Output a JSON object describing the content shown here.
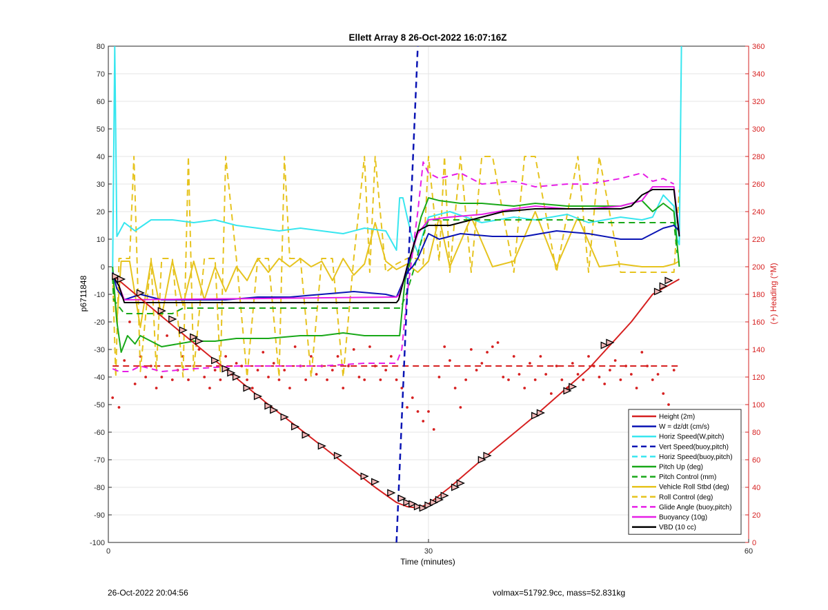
{
  "footer": {
    "left": "26-Oct-2022 20:04:56",
    "right": "volmax=51792.9cc, mass=52.831kg"
  },
  "chart_data": {
    "type": "line",
    "title": "Ellett Array 8 26-Oct-2022 16:07:16Z",
    "xlabel": "Time (minutes)",
    "ylabel": "p6711848",
    "y2label": "(+) Heading (°M)",
    "xlim": [
      0,
      60
    ],
    "ylim": [
      -100,
      80
    ],
    "y2lim": [
      0,
      360
    ],
    "xticks": [
      0,
      30,
      60
    ],
    "yticks": [
      -100,
      -90,
      -80,
      -70,
      -60,
      -50,
      -40,
      -30,
      -20,
      -10,
      0,
      10,
      20,
      30,
      40,
      50,
      60,
      70,
      80
    ],
    "y2ticks": [
      0,
      20,
      40,
      60,
      80,
      100,
      120,
      140,
      160,
      180,
      200,
      220,
      240,
      260,
      280,
      300,
      320,
      340,
      360
    ],
    "grid": true,
    "legend_position": "bottom-right",
    "colors": {
      "height": "#d62020",
      "w": "#0a14b4",
      "horiz": "#37e6ef",
      "vert_buoy": "#0a14b4",
      "horiz_buoy": "#37e6ef",
      "pitch": "#18a818",
      "pitch_ctrl": "#18a818",
      "roll": "#e6c31e",
      "roll_ctrl": "#e6c31e",
      "glide": "#e61ee6",
      "buoy": "#e61ee6",
      "vbd": "#000000",
      "heading": "#d62020",
      "right_axis": "#d62020"
    },
    "series": [
      {
        "name": "Height (2m)",
        "key": "height",
        "dash": false,
        "x": [
          0.4,
          5,
          10,
          15,
          20,
          25,
          27,
          28,
          29,
          30,
          32,
          35,
          40,
          45,
          49,
          51,
          53.5
        ],
        "y": [
          -3,
          -18,
          -34,
          -50,
          -65,
          -80,
          -85.5,
          -87,
          -87.5,
          -86,
          -80,
          -70,
          -54,
          -37,
          -20,
          -10,
          -4.5
        ]
      },
      {
        "name": "W = dz/dt (cm/s)",
        "key": "w",
        "dash": false,
        "x": [
          0.4,
          0.8,
          1.5,
          3,
          5,
          8,
          11,
          14,
          17,
          20,
          23,
          26,
          27,
          28,
          28.5,
          29,
          30,
          31,
          33,
          36,
          39,
          42,
          45,
          48,
          50,
          51,
          52,
          53,
          53.5
        ],
        "y": [
          -2,
          -8,
          -12,
          -10,
          -12,
          -12,
          -12,
          -11,
          -11,
          -10,
          -9,
          -10,
          -11,
          -2,
          0,
          3,
          12,
          10,
          12,
          11,
          11,
          13,
          12,
          10,
          10,
          12,
          14,
          15,
          13
        ]
      },
      {
        "name": "Horiz Speed(W,pitch)",
        "key": "horiz",
        "dash": false,
        "x": [
          0.4,
          0.6,
          0.8,
          1.5,
          2.5,
          4,
          6,
          8,
          10,
          12,
          14,
          16,
          18,
          20,
          22,
          24,
          26,
          27,
          27.3,
          27.6,
          28,
          28.5,
          29,
          29.5,
          30,
          32,
          35,
          38,
          40,
          43,
          45,
          48,
          50,
          51,
          52,
          53,
          53.3,
          53.5,
          53.7
        ],
        "y": [
          -2,
          80,
          11,
          16,
          13,
          17,
          17,
          16,
          17,
          15,
          14,
          13,
          14,
          13,
          12,
          14,
          13,
          6,
          25,
          25,
          18,
          10,
          5,
          12,
          18,
          20,
          16,
          18,
          17,
          19,
          16,
          18,
          17,
          18,
          26,
          22,
          10,
          8,
          80
        ]
      },
      {
        "name": "Vert Speed(buoy,pitch)",
        "key": "vert_buoy",
        "dash": true,
        "x": [
          27.0,
          29.0
        ],
        "y": [
          -100,
          80
        ]
      },
      {
        "name": "Horiz Speed(buoy,pitch)",
        "key": "horiz_buoy",
        "dash": true,
        "x": [],
        "y": []
      },
      {
        "name": "Pitch Up (deg)",
        "key": "pitch",
        "dash": false,
        "x": [
          0.4,
          0.8,
          1.2,
          1.8,
          2.5,
          3,
          5,
          8,
          10,
          12,
          15,
          18,
          20,
          22,
          24,
          26,
          27.3,
          27.8,
          28.5,
          29.3,
          30,
          31,
          33,
          35,
          38,
          40,
          43,
          45,
          48,
          50,
          51,
          52,
          53,
          53.3,
          53.5
        ],
        "y": [
          0,
          -20,
          -31,
          -25,
          -28,
          -25,
          -29,
          -27,
          -27,
          -26,
          -26,
          -25,
          -25,
          -24,
          -25,
          -25,
          -25,
          -5,
          5,
          18,
          25,
          24,
          23,
          23,
          22,
          23,
          22,
          22,
          22,
          24,
          20,
          23,
          20,
          8,
          0
        ]
      },
      {
        "name": "Pitch Control (mm)",
        "key": "pitch_ctrl",
        "dash": true,
        "x": [
          0.4,
          0.5,
          1.5,
          3,
          4,
          6,
          7,
          27.4,
          28,
          28.7,
          29.3,
          30,
          45,
          46,
          53,
          53.3
        ],
        "y": [
          -4,
          -12,
          -17,
          -17,
          -17,
          -17,
          -15,
          -15,
          -9,
          0,
          9,
          17,
          17,
          16,
          16,
          5
        ]
      },
      {
        "name": "Vehicle Roll Stbd (deg)",
        "key": "roll",
        "dash": false,
        "x": [
          0.4,
          0.8,
          1.2,
          2,
          3,
          4,
          5,
          6,
          7,
          8,
          9,
          10,
          11,
          12,
          13,
          14,
          15,
          16,
          17,
          18,
          19,
          20,
          21,
          22,
          23,
          24,
          25,
          26,
          27,
          28,
          29,
          30,
          31,
          32,
          34,
          36,
          38,
          40,
          42,
          44,
          46,
          48,
          50,
          52,
          53,
          53.5
        ],
        "y": [
          -3,
          -20,
          2,
          2,
          -22,
          2,
          -18,
          2,
          -14,
          2,
          -12,
          0,
          -9,
          0,
          -5,
          3,
          -2,
          3,
          0,
          3,
          0,
          2,
          -5,
          3,
          -3,
          1,
          16,
          2,
          -1,
          1,
          -2,
          2,
          18,
          0,
          18,
          0,
          2,
          20,
          0,
          18,
          0,
          1,
          0,
          0,
          1,
          2
        ]
      },
      {
        "name": "Roll Control (deg)",
        "key": "roll_ctrl",
        "dash": true,
        "x": [
          0.4,
          0.7,
          1,
          2,
          2.4,
          3,
          4,
          4.5,
          5,
          6,
          7,
          7.5,
          8,
          9,
          10,
          10.5,
          11,
          12,
          13,
          14,
          15,
          16,
          16.5,
          17,
          18,
          19,
          20,
          21,
          22,
          23,
          24,
          24.5,
          25,
          26,
          27,
          28,
          29,
          29.5,
          30,
          31,
          31.5,
          32,
          33,
          34,
          35,
          36,
          38,
          39,
          40,
          42,
          44,
          45,
          46,
          48,
          50,
          52,
          53,
          53.5
        ],
        "y": [
          -3,
          -40,
          3,
          3,
          40,
          -38,
          3,
          -38,
          3,
          3,
          -40,
          40,
          -38,
          3,
          3,
          -38,
          40,
          3,
          -40,
          3,
          3,
          -40,
          40,
          3,
          3,
          -40,
          3,
          3,
          -40,
          3,
          40,
          -2,
          40,
          -2,
          1,
          3,
          3,
          1,
          40,
          2,
          40,
          -2,
          40,
          -2,
          40,
          40,
          -2,
          40,
          40,
          -2,
          40,
          -2,
          40,
          -2,
          -2,
          -2,
          -2,
          28
        ]
      },
      {
        "name": "Glide Angle (buoy,pitch)",
        "key": "glide",
        "dash": true,
        "x": [
          0.4,
          1,
          2,
          3,
          4,
          5,
          8,
          12,
          16,
          20,
          24,
          26,
          27,
          27.5,
          28,
          28.5,
          29,
          29.5,
          30,
          31,
          33,
          35,
          38,
          40,
          43,
          45,
          48,
          50,
          51,
          52,
          53
        ],
        "y": [
          -37,
          -38,
          -38,
          -36,
          -37,
          -38,
          -37,
          -36,
          -36,
          -36,
          -35,
          -35,
          -35,
          -30,
          -10,
          5,
          20,
          38,
          34,
          32,
          34,
          30,
          31,
          29,
          30,
          30,
          32,
          34,
          31,
          32,
          30
        ]
      },
      {
        "name": "Buoyancy (10g)",
        "key": "buoy",
        "dash": false,
        "x": [
          0.4,
          1,
          1.5,
          27,
          27.3,
          28,
          29,
          30,
          32,
          35,
          38,
          40,
          43,
          45,
          48,
          50,
          51,
          52,
          53,
          53.5
        ],
        "y": [
          -3,
          -7,
          -12,
          -11,
          -10,
          0,
          12,
          17,
          18,
          19,
          21,
          22,
          21,
          21,
          22,
          24,
          29,
          29,
          29,
          12
        ]
      },
      {
        "name": "VBD (10 cc)",
        "key": "vbd",
        "dash": false,
        "x": [
          0.4,
          1,
          1.5,
          27,
          27.2,
          28,
          29,
          30,
          32,
          34,
          37,
          40,
          42,
          45,
          48,
          49,
          50,
          51,
          52,
          53,
          53.5
        ],
        "y": [
          -3,
          -7,
          -13,
          -13,
          -12,
          0,
          13,
          15,
          15,
          17,
          20,
          21,
          21,
          21,
          21,
          22,
          26,
          28,
          28,
          28,
          11
        ]
      },
      {
        "name": "",
        "key": "heading_mean",
        "axis": "right",
        "dash": true,
        "x": [
          0.4,
          53.5
        ],
        "y": [
          128,
          128
        ]
      }
    ],
    "heading_points": {
      "axis": "right",
      "x": [
        0.4,
        1.0,
        1.5,
        2.0,
        2.5,
        3.0,
        3.5,
        4.0,
        4.5,
        5.0,
        5.5,
        6.0,
        6.5,
        7.0,
        7.5,
        8.0,
        8.5,
        9.0,
        9.5,
        10.0,
        10.5,
        11.0,
        11.5,
        12.0,
        12.5,
        13.0,
        13.5,
        14.0,
        14.5,
        15.0,
        15.5,
        16.0,
        16.5,
        17.0,
        17.5,
        18.0,
        18.5,
        19.0,
        19.5,
        20.0,
        20.5,
        21.0,
        21.5,
        22.0,
        22.5,
        23.0,
        23.5,
        24.0,
        24.5,
        25.0,
        25.5,
        26.0,
        26.5,
        27.0,
        27.5,
        28.0,
        28.5,
        29.0,
        29.5,
        30.0,
        30.5,
        31.0,
        31.5,
        32.0,
        32.5,
        33.0,
        33.5,
        34.0,
        34.5,
        35.0,
        35.5,
        36.0,
        36.5,
        37.0,
        37.5,
        38.0,
        38.5,
        39.0,
        39.5,
        40.0,
        40.5,
        41.0,
        41.5,
        42.0,
        42.5,
        43.0,
        43.5,
        44.0,
        44.5,
        45.0,
        45.5,
        46.0,
        46.5,
        47.0,
        47.5,
        48.0,
        48.5,
        49.0,
        49.5,
        50.0,
        50.5,
        51.0,
        51.5,
        52.0,
        52.5,
        53.0
      ],
      "y": [
        105,
        98,
        132,
        160,
        115,
        135,
        120,
        128,
        112,
        120,
        150,
        118,
        125,
        135,
        118,
        128,
        140,
        120,
        112,
        125,
        118,
        135,
        122,
        130,
        128,
        118,
        112,
        125,
        138,
        120,
        130,
        118,
        125,
        112,
        142,
        128,
        118,
        135,
        122,
        128,
        118,
        125,
        135,
        112,
        128,
        140,
        120,
        118,
        142,
        128,
        118,
        125,
        135,
        118,
        112,
        98,
        105,
        95,
        88,
        95,
        82,
        120,
        142,
        132,
        112,
        98,
        118,
        140,
        125,
        130,
        138,
        142,
        145,
        120,
        118,
        135,
        122,
        112,
        130,
        118,
        135,
        122,
        108,
        128,
        118,
        112,
        130,
        122,
        118,
        135,
        128,
        120,
        115,
        125,
        132,
        118,
        128,
        122,
        112,
        138,
        128,
        118,
        122,
        108,
        100,
        125
      ]
    },
    "height_markers": {
      "x": [
        0.7,
        1.2,
        3,
        5,
        6,
        7,
        8,
        8.5,
        10,
        11,
        11.5,
        12,
        13,
        14,
        15,
        15.5,
        16.5,
        17.5,
        18.5,
        20,
        21.5,
        24,
        25,
        26.5,
        27.5,
        28,
        28.5,
        29,
        29.5,
        30,
        30.5,
        31,
        31.5,
        32.5,
        33,
        35,
        35.5,
        40,
        40.5,
        43,
        43.5,
        46.5,
        47,
        51.5,
        52,
        52.5
      ],
      "y": [
        -3.5,
        -4.5,
        -9.5,
        -16,
        -19,
        -23,
        -25.5,
        -27,
        -34,
        -37,
        -38.5,
        -40,
        -44,
        -47,
        -50.5,
        -52,
        -54.5,
        -58,
        -61,
        -65,
        -68.5,
        -76,
        -78,
        -82,
        -84,
        -85.5,
        -86,
        -87,
        -87.5,
        -86.5,
        -85.5,
        -84.5,
        -83,
        -80,
        -78.5,
        -70,
        -68.5,
        -54,
        -53,
        -45,
        -43.5,
        -28.5,
        -27.5,
        -9,
        -7,
        -5
      ]
    }
  }
}
